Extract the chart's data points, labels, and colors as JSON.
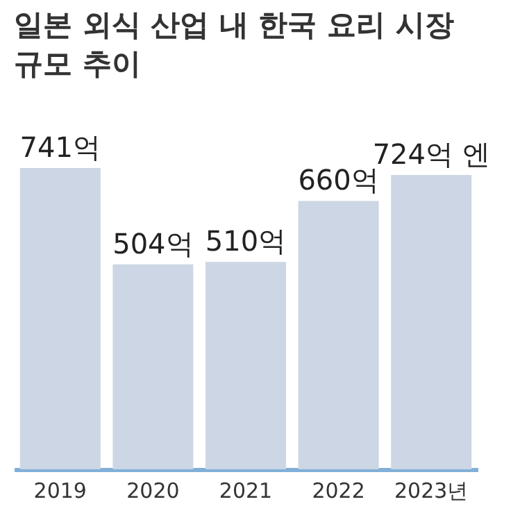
{
  "chart_data": {
    "type": "bar",
    "title": "일본 외식 산업 내 한국 요리 시장\n규모 추이",
    "categories": [
      "2019",
      "2020",
      "2021",
      "2022",
      "2023년"
    ],
    "values": [
      741,
      504,
      510,
      660,
      724
    ],
    "value_labels": [
      "741억",
      "504억",
      "510억",
      "660억",
      "724억 엔"
    ],
    "color": "#cdd6e4"
  }
}
